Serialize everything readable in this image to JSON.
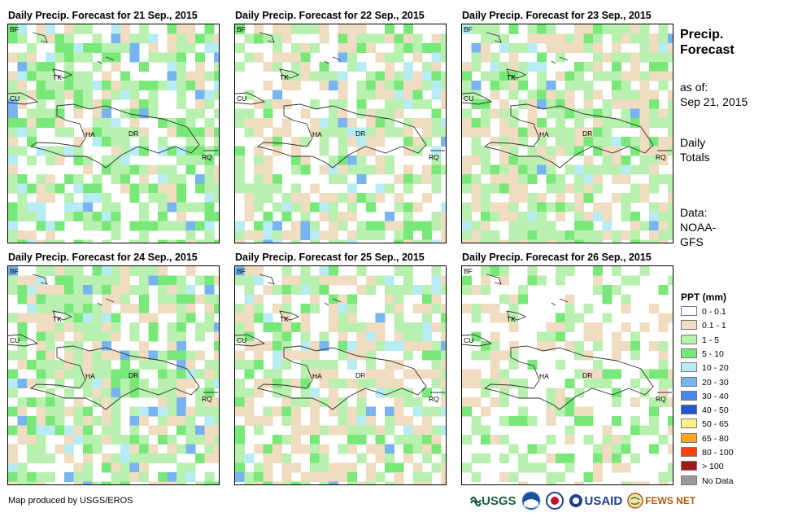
{
  "panels": [
    {
      "title": "Daily Precip. Forecast for 21 Sep., 2015"
    },
    {
      "title": "Daily Precip. Forecast for 22 Sep., 2015"
    },
    {
      "title": "Daily Precip. Forecast for 23 Sep., 2015"
    },
    {
      "title": "Daily Precip. Forecast for 24 Sep., 2015"
    },
    {
      "title": "Daily Precip. Forecast for 25 Sep., 2015"
    },
    {
      "title": "Daily Precip. Forecast for 26 Sep., 2015"
    }
  ],
  "map_labels": {
    "bf": "BF",
    "cu": "CU",
    "tk": "TK",
    "ha": "HA",
    "dr": "DR",
    "rq": "RQ"
  },
  "side": {
    "title_line1": "Precip.",
    "title_line2": "Forecast",
    "asof_label": "as of:",
    "asof_date": "Sep 21, 2015",
    "daily": "Daily",
    "totals": "Totals",
    "data_label": "Data:",
    "data_src1": "NOAA-",
    "data_src2": "GFS"
  },
  "legend": {
    "title": "PPT (mm)",
    "items": [
      {
        "label": "0 - 0.1",
        "color": "#ffffff"
      },
      {
        "label": "0.1 - 1",
        "color": "#f0dcc0"
      },
      {
        "label": "1 - 5",
        "color": "#b8f0b0"
      },
      {
        "label": "5 - 10",
        "color": "#78e878"
      },
      {
        "label": "10 - 20",
        "color": "#b8ecf4"
      },
      {
        "label": "20 - 30",
        "color": "#78b4f0"
      },
      {
        "label": "30 - 40",
        "color": "#4888e8"
      },
      {
        "label": "40 - 50",
        "color": "#2058d0"
      },
      {
        "label": "50 - 65",
        "color": "#fff08c"
      },
      {
        "label": "65 - 80",
        "color": "#ffa820"
      },
      {
        "label": "80 - 100",
        "color": "#ff4010"
      },
      {
        "label": "> 100",
        "color": "#a01818"
      },
      {
        "label": "No Data",
        "color": "#9a9a9a"
      }
    ]
  },
  "credit": "Map produced by USGS/EROS",
  "logos": {
    "usgs": "USGS",
    "usaid": "USAID",
    "fewsnet": "FEWS NET"
  }
}
